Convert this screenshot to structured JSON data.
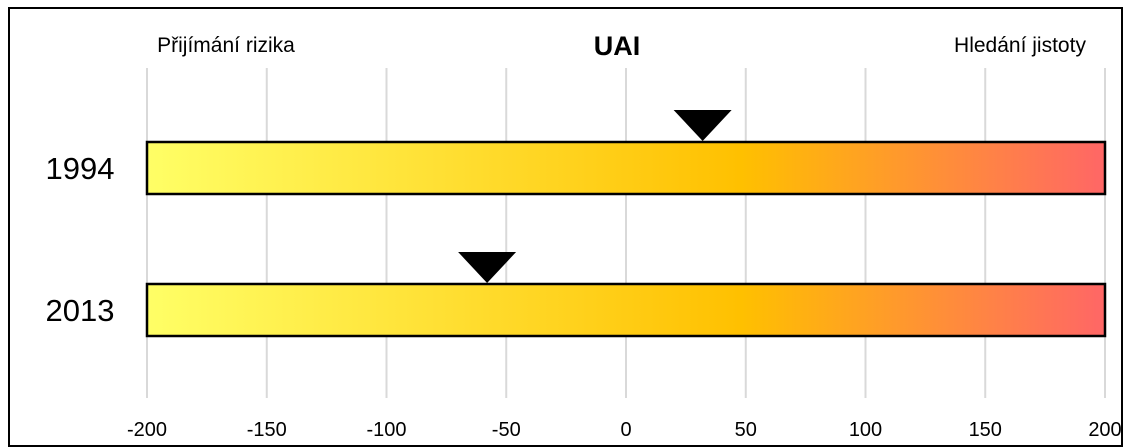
{
  "chart_data": {
    "type": "bar",
    "title": "UAI",
    "left_label": "Přijímání rizika",
    "right_label": "Hledání jistoty",
    "xlim": [
      -200,
      200
    ],
    "x_ticks": [
      -200,
      -150,
      -100,
      -50,
      0,
      50,
      100,
      150,
      200
    ],
    "tick_labels": [
      "-200",
      "-150",
      "-100",
      "-50",
      "0",
      "50",
      "100",
      "150",
      "200"
    ],
    "grid": true,
    "rows": [
      {
        "category": "1994",
        "value": 32
      },
      {
        "category": "2013",
        "value": -58
      }
    ],
    "gradient": [
      "#ffff66",
      "#ffc000",
      "#ff6666"
    ],
    "marker_color": "#000000"
  }
}
